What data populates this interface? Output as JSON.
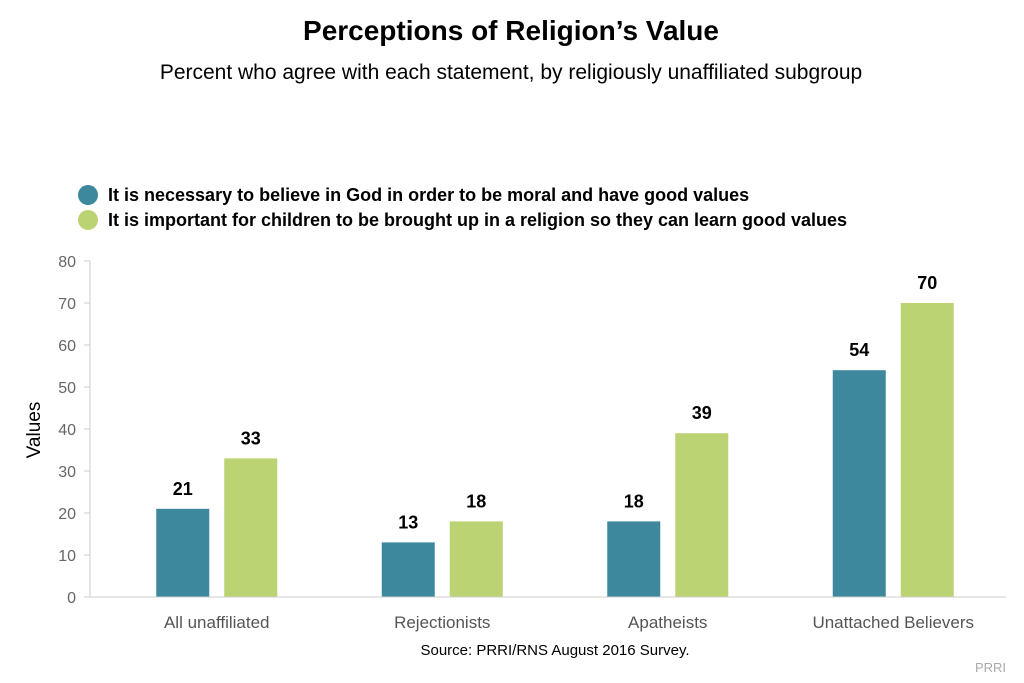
{
  "chart_data": {
    "type": "bar",
    "title": "Perceptions of Religion’s Value",
    "subtitle": "Percent who agree with each statement, by religiously unaffiliated subgroup",
    "categories": [
      "All unaffiliated",
      "Rejectionists",
      "Apatheists",
      "Unattached Believers"
    ],
    "series": [
      {
        "name": "It is necessary to believe in God in order to be moral and have good values",
        "color": "#3d889c",
        "values": [
          21,
          13,
          18,
          54
        ]
      },
      {
        "name": "It is important for children to be brought up in a religion so they can learn good values",
        "color": "#bcd374",
        "values": [
          33,
          18,
          39,
          70
        ]
      }
    ],
    "ylabel": "Values",
    "xlabel": "",
    "ylim": [
      0,
      80
    ],
    "yticks": [
      0,
      10,
      20,
      30,
      40,
      50,
      60,
      70,
      80
    ],
    "grid": false,
    "legend_position": "top-left",
    "data_labels": true
  },
  "source": "Source: PRRI/RNS August 2016 Survey.",
  "credit": "PRRI"
}
